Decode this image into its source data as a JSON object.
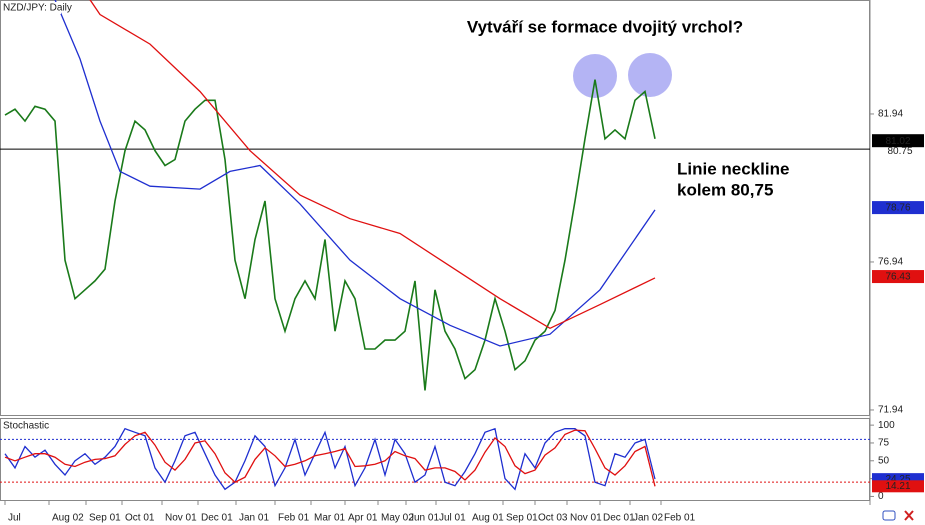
{
  "chart_data": [
    {
      "type": "line",
      "header": "NZD/JPY: Daily",
      "annotations": [
        "Vytváří se formace dvojitý vrchol?",
        "Linie neckline",
        "kolem 80,75"
      ],
      "xlim": [
        -0.5,
        86.5
      ],
      "ylim": [
        71.77,
        85.79
      ],
      "yticks": [
        81.94,
        76.94,
        71.94
      ],
      "neckline": 80.75,
      "neckline_color": "#000000",
      "price_markers": [
        {
          "value": 81.02,
          "color": "#000000"
        },
        {
          "value": 78.76,
          "color": "#1f2fd0"
        },
        {
          "value": 76.43,
          "color": "#e01010"
        }
      ],
      "series": [
        {
          "name": "NZD/JPY",
          "color": "#1a7a1a",
          "values": [
            81.9,
            82.1,
            81.7,
            82.2,
            82.1,
            81.7,
            77.0,
            75.7,
            76.0,
            76.3,
            76.7,
            79.0,
            80.7,
            81.7,
            81.4,
            80.7,
            80.2,
            80.4,
            81.7,
            82.1,
            82.4,
            82.4,
            80.4,
            77.0,
            75.7,
            77.7,
            79.0,
            75.7,
            74.6,
            75.7,
            76.3,
            75.7,
            77.7,
            74.6,
            76.3,
            75.7,
            74.0,
            74.0,
            74.3,
            74.3,
            74.6,
            76.3,
            72.6,
            76.0,
            74.6,
            74.0,
            73.0,
            73.3,
            74.3,
            75.7,
            74.6,
            73.3,
            73.6,
            74.3,
            74.6,
            75.3,
            77.0,
            79.0,
            81.1,
            83.1,
            81.1,
            81.4,
            81.1,
            82.4,
            82.7,
            81.1
          ]
        },
        {
          "color": "#1f2fd0",
          "x": [
            5,
            7.5,
            9.5,
            11.5,
            14.5,
            19.5,
            22.5,
            25.5,
            29.5,
            34.5,
            39.5,
            44.5,
            49.5,
            54.5,
            59.5,
            65
          ],
          "values": [
            85.8,
            83.8,
            81.7,
            80.0,
            79.5,
            79.4,
            80.0,
            80.2,
            78.9,
            77.0,
            75.7,
            74.8,
            74.1,
            74.5,
            76.0,
            78.7
          ]
        },
        {
          "color": "#e01010",
          "x": [
            8.5,
            9.5,
            14.5,
            19.5,
            24.5,
            29.5,
            34.5,
            39.5,
            44.5,
            49.5,
            54.5,
            59.5,
            65
          ],
          "values": [
            85.8,
            85.3,
            84.3,
            82.7,
            80.7,
            79.2,
            78.4,
            77.9,
            76.8,
            75.7,
            74.7,
            75.5,
            76.4
          ]
        }
      ]
    },
    {
      "type": "line",
      "label": "Stochastic",
      "xlim": [
        -0.5,
        86.5
      ],
      "ylim": [
        -5,
        110
      ],
      "yticks": [
        100,
        75,
        50,
        25,
        0
      ],
      "levels": [
        {
          "value": 80,
          "color": "#1f2fd0"
        },
        {
          "value": 20,
          "color": "#e01010"
        }
      ],
      "xticks": [
        {
          "value": 0,
          "label": "Jul"
        },
        {
          "value": 4.4,
          "label": "Aug 02"
        },
        {
          "value": 8.1,
          "label": "Sep 01"
        },
        {
          "value": 11.7,
          "label": "Oct 01"
        },
        {
          "value": 15.7,
          "label": "Nov 01"
        },
        {
          "value": 19.3,
          "label": "Dec 01"
        },
        {
          "value": 23.1,
          "label": "Jan 01"
        },
        {
          "value": 27,
          "label": "Feb 01"
        },
        {
          "value": 30.6,
          "label": "Mar 01"
        },
        {
          "value": 34,
          "label": "Apr 01"
        },
        {
          "value": 37.3,
          "label": "May 02"
        },
        {
          "value": 40.1,
          "label": "Jun 01"
        },
        {
          "value": 43.1,
          "label": "Jul 01"
        },
        {
          "value": 46.4,
          "label": "Aug 01"
        },
        {
          "value": 49.8,
          "label": "Sep 01"
        },
        {
          "value": 53,
          "label": "Oct 03"
        },
        {
          "value": 56.2,
          "label": "Nov 01"
        },
        {
          "value": 59.5,
          "label": "Dec 01"
        },
        {
          "value": 62.5,
          "label": "Jan 02"
        },
        {
          "value": 65.6,
          "label": "Feb 01"
        }
      ],
      "series": [
        {
          "color": "#1f2fd0",
          "values": [
            60,
            40,
            70,
            55,
            65,
            45,
            30,
            50,
            60,
            45,
            55,
            70,
            95,
            90,
            85,
            40,
            20,
            50,
            85,
            90,
            60,
            30,
            10,
            20,
            50,
            85,
            70,
            15,
            40,
            80,
            30,
            60,
            90,
            40,
            70,
            15,
            40,
            80,
            30,
            80,
            60,
            20,
            30,
            70,
            20,
            15,
            35,
            60,
            90,
            95,
            25,
            10,
            60,
            40,
            75,
            90,
            95,
            95,
            85,
            20,
            15,
            60,
            55,
            75,
            80,
            24.25
          ]
        },
        {
          "color": "#e01010",
          "values": [
            55,
            50,
            55,
            60,
            60,
            55,
            45,
            42,
            48,
            52,
            53,
            57,
            73,
            85,
            90,
            72,
            48,
            37,
            52,
            75,
            78,
            60,
            33,
            20,
            27,
            52,
            68,
            57,
            42,
            45,
            50,
            57,
            60,
            63,
            67,
            42,
            43,
            45,
            50,
            63,
            57,
            53,
            37,
            40,
            40,
            35,
            23,
            37,
            62,
            82,
            70,
            43,
            32,
            37,
            58,
            68,
            87,
            93,
            92,
            67,
            40,
            30,
            43,
            63,
            70,
            14.21
          ]
        }
      ]
    }
  ]
}
